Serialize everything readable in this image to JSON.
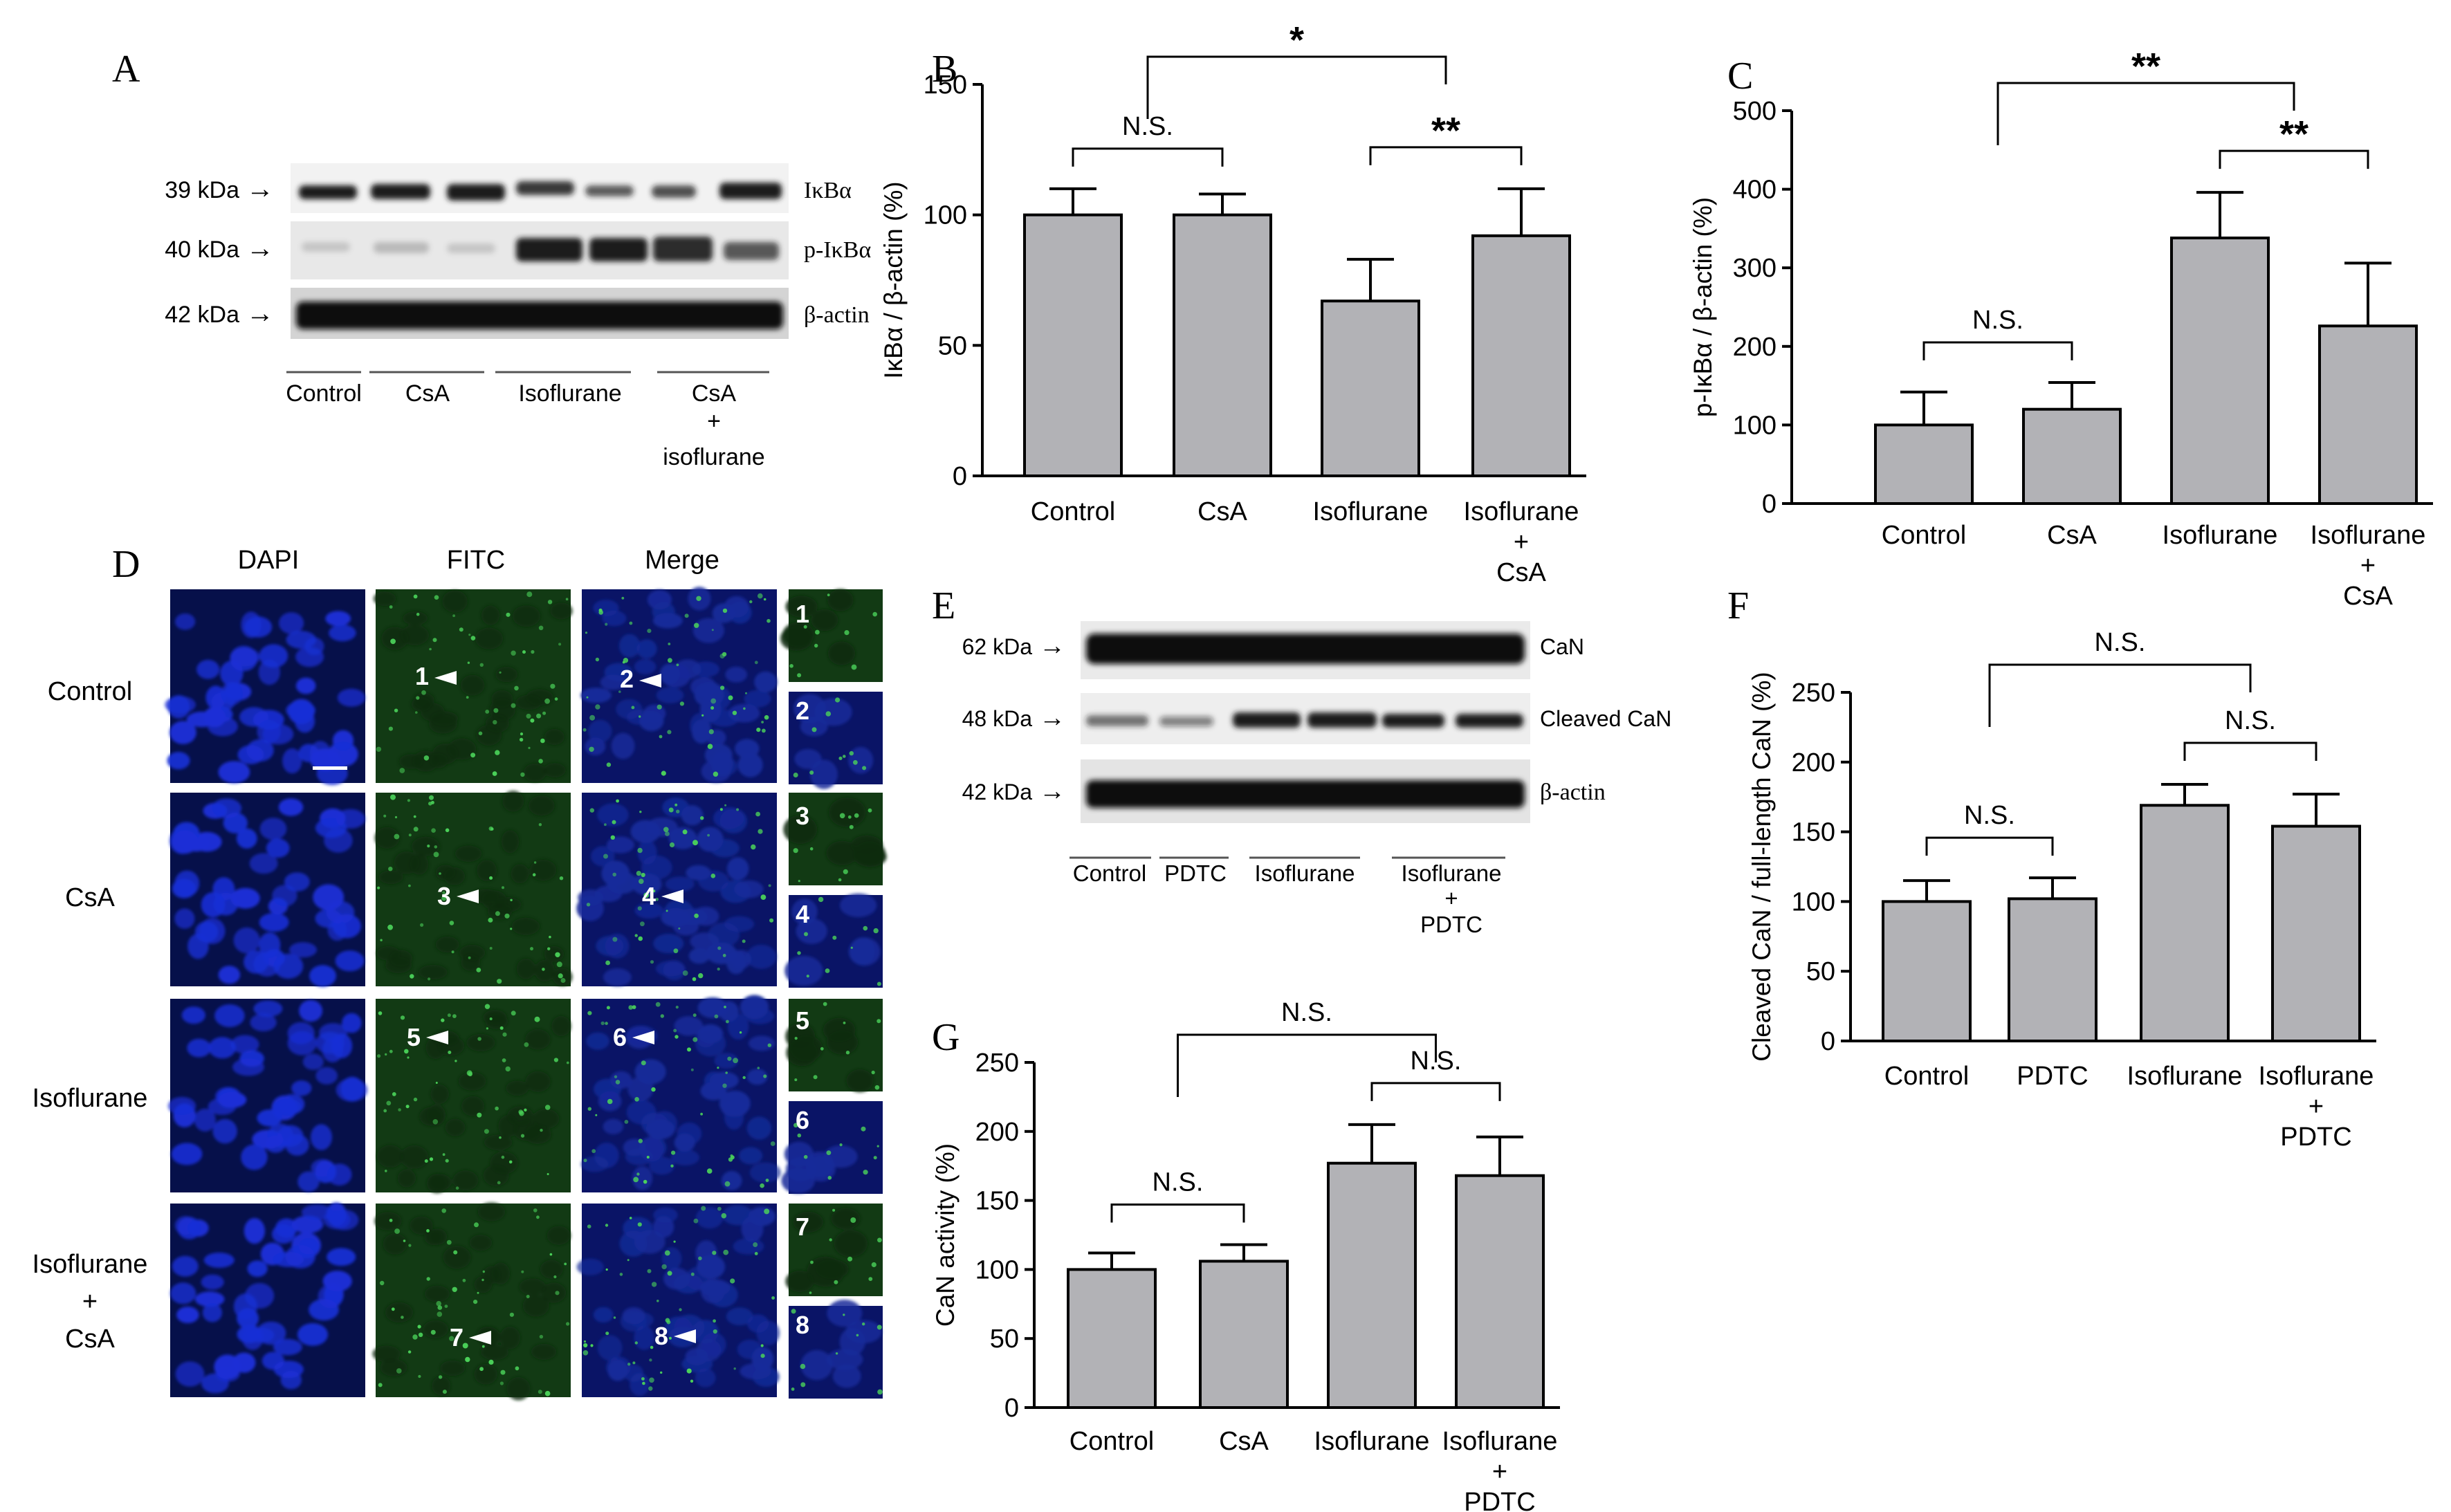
{
  "panel_letters": {
    "A": "A",
    "B": "B",
    "C": "C",
    "D": "D",
    "E": "E",
    "F": "F",
    "G": "G"
  },
  "blot_a": {
    "rows": [
      {
        "kda": "39 kDa",
        "protein": "IκBα"
      },
      {
        "kda": "40 kDa",
        "protein": "p-IκBα"
      },
      {
        "kda": "42 kDa",
        "protein": "β-actin"
      }
    ],
    "arrow": "→",
    "groups": [
      "Control",
      "CsA",
      "Isoflurane",
      "CsA",
      "+",
      "isoflurane"
    ]
  },
  "blot_e": {
    "rows": [
      {
        "kda": "62 kDa",
        "protein": "CaN"
      },
      {
        "kda": "48 kDa",
        "protein": "Cleaved CaN"
      },
      {
        "kda": "42 kDa",
        "protein": "β-actin"
      }
    ],
    "arrow": "→",
    "groups": [
      "Control",
      "PDTC",
      "Isoflurane",
      "Isoflurane",
      "+",
      "PDTC"
    ]
  },
  "panel_d": {
    "columns": [
      "DAPI",
      "FITC",
      "Merge"
    ],
    "rows": [
      "Control",
      "CsA",
      "Isoflurane",
      "Isoflurane",
      "+",
      "CsA"
    ],
    "arrow_labels": [
      "1",
      "2",
      "3",
      "4",
      "5",
      "6",
      "7",
      "8"
    ],
    "colors": {
      "dapi": "#1a2fd6",
      "fitc_bg": "#123a14",
      "fitc_dot": "#4bd35a",
      "merge_bg": "#142a9a"
    }
  },
  "chart_data": [
    {
      "panel": "B",
      "type": "bar",
      "categories": [
        "Control",
        "CsA",
        "Isoflurane",
        "Isoflurane + CsA"
      ],
      "tick_lines": [
        [
          "Control"
        ],
        [
          "CsA"
        ],
        [
          "Isoflurane"
        ],
        [
          "Isoflurane",
          "+",
          "CsA"
        ]
      ],
      "values": [
        100,
        100,
        67,
        92
      ],
      "errors": [
        10,
        8,
        16,
        18
      ],
      "ylabel": "IκBα / β-actin (%)",
      "ylim": [
        0,
        150
      ],
      "yticks": [
        0,
        50,
        100,
        150
      ],
      "significance": [
        {
          "label": "N.S.",
          "from": 0,
          "to": 1
        },
        {
          "label": "**",
          "from": 2,
          "to": 3
        },
        {
          "label": "*",
          "from": 0.5,
          "to": 2.5
        }
      ],
      "bar_color": "#b2b2b6"
    },
    {
      "panel": "C",
      "type": "bar",
      "categories": [
        "Control",
        "CsA",
        "Isoflurane",
        "Isoflurane + CsA"
      ],
      "tick_lines": [
        [
          "Control"
        ],
        [
          "CsA"
        ],
        [
          "Isoflurane"
        ],
        [
          "Isoflurane",
          "+",
          "CsA"
        ]
      ],
      "values": [
        100,
        120,
        338,
        226
      ],
      "errors": [
        42,
        34,
        58,
        80
      ],
      "ylabel": "p-IκBα / β-actin (%)",
      "ylim": [
        0,
        500
      ],
      "yticks": [
        0,
        100,
        200,
        300,
        400,
        500
      ],
      "significance": [
        {
          "label": "N.S.",
          "from": 0,
          "to": 1
        },
        {
          "label": "**",
          "from": 2,
          "to": 3
        },
        {
          "label": "**",
          "from": 0.5,
          "to": 2.5
        }
      ],
      "bar_color": "#b2b2b6"
    },
    {
      "panel": "F",
      "type": "bar",
      "categories": [
        "Control",
        "PDTC",
        "Isoflurane",
        "Isoflurane + PDTC"
      ],
      "tick_lines": [
        [
          "Control"
        ],
        [
          "PDTC"
        ],
        [
          "Isoflurane"
        ],
        [
          "Isoflurane",
          "+",
          "PDTC"
        ]
      ],
      "values": [
        100,
        102,
        169,
        154
      ],
      "errors": [
        15,
        15,
        15,
        23
      ],
      "ylabel": "Cleaved CaN / full-length CaN (%)",
      "ylim": [
        0,
        250
      ],
      "yticks": [
        0,
        50,
        100,
        150,
        200,
        250
      ],
      "significance": [
        {
          "label": "N.S.",
          "from": 0,
          "to": 1
        },
        {
          "label": "N.S.",
          "from": 2,
          "to": 3
        },
        {
          "label": "N.S.",
          "from": 0.5,
          "to": 2.5
        }
      ],
      "bar_color": "#b2b2b6"
    },
    {
      "panel": "G",
      "type": "bar",
      "categories": [
        "Control",
        "CsA",
        "Isoflurane",
        "Isoflurane + PDTC"
      ],
      "tick_lines": [
        [
          "Control"
        ],
        [
          "CsA"
        ],
        [
          "Isoflurane"
        ],
        [
          "Isoflurane",
          "+",
          "PDTC"
        ]
      ],
      "values": [
        100,
        106,
        177,
        168
      ],
      "errors": [
        12,
        12,
        28,
        28
      ],
      "ylabel": "CaN activity (%)",
      "ylim": [
        0,
        250
      ],
      "yticks": [
        0,
        50,
        100,
        150,
        200,
        250
      ],
      "significance": [
        {
          "label": "N.S.",
          "from": 0,
          "to": 1
        },
        {
          "label": "N.S.",
          "from": 2,
          "to": 3
        },
        {
          "label": "N.S.",
          "from": 0.5,
          "to": 2.5
        }
      ],
      "bar_color": "#b2b2b6"
    }
  ]
}
